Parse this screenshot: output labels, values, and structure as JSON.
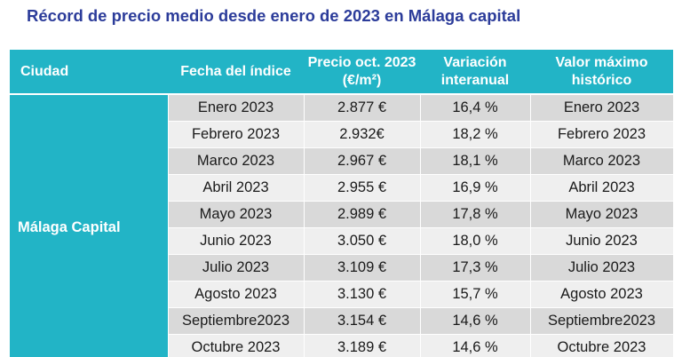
{
  "title": "Récord de precio medio desde enero de 2023 en Málaga capital",
  "table": {
    "headers": {
      "city": "Ciudad",
      "date": "Fecha del índice",
      "price": "Precio oct. 2023 (€/m²)",
      "variation": "Variación interanual",
      "max": "Valor máximo histórico"
    },
    "city": "Málaga Capital",
    "rows": [
      [
        "Enero 2023",
        "2.877 €",
        "16,4 %",
        "Enero 2023"
      ],
      [
        "Febrero 2023",
        "2.932€",
        "18,2 %",
        "Febrero 2023"
      ],
      [
        "Marco 2023",
        "2.967 €",
        "18,1 %",
        "Marco 2023"
      ],
      [
        "Abril 2023",
        "2.955 €",
        "16,9 %",
        "Abril 2023"
      ],
      [
        "Mayo 2023",
        "2.989 €",
        "17,8 %",
        "Mayo 2023"
      ],
      [
        "Junio 2023",
        "3.050 €",
        "18,0 %",
        "Junio 2023"
      ],
      [
        "Julio 2023",
        "3.109 €",
        "17,3 %",
        "Julio 2023"
      ],
      [
        "Agosto 2023",
        "3.130 €",
        "15,7 %",
        "Agosto 2023"
      ],
      [
        "Septiembre2023",
        "3.154 €",
        "14,6 %",
        "Septiembre2023"
      ],
      [
        "Octubre 2023",
        "3.189 €",
        "14,6 %",
        "Octubre 2023"
      ]
    ]
  },
  "colors": {
    "title": "#2c3c9a",
    "header_bg": "#22b4c6",
    "row_dark": "#d9d9d9",
    "row_light": "#efefef"
  }
}
